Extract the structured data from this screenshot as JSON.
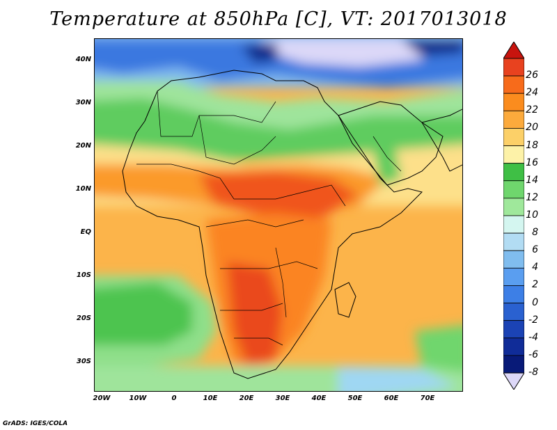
{
  "title": "Temperature at 850hPa [C], VT: 2017013018",
  "credit": "GrADS: IGES/COLA",
  "lat_labels": [
    "40N",
    "30N",
    "20N",
    "10N",
    "EQ",
    "10S",
    "20S",
    "30S"
  ],
  "lon_labels": [
    "20W",
    "10W",
    "0",
    "10E",
    "20E",
    "30E",
    "40E",
    "50E",
    "60E",
    "70E"
  ],
  "colorbar": {
    "labels": [
      "26",
      "24",
      "22",
      "20",
      "18",
      "16",
      "14",
      "12",
      "10",
      "8",
      "6",
      "4",
      "2",
      "0",
      "-2",
      "-4",
      "-6",
      "-8"
    ],
    "colors": [
      "#e8421f",
      "#f76b1b",
      "#fb8c1e",
      "#fcaa3c",
      "#fcd068",
      "#fdf2a8",
      "#3fbf45",
      "#6fd66d",
      "#9fe89b",
      "#d4f6f0",
      "#b2dcf3",
      "#80bdef",
      "#5a9ef0",
      "#3d7fe6",
      "#2a61d0",
      "#1b43b5",
      "#102c98",
      "#081a78"
    ],
    "top_triangle_color": "#c8140e",
    "bottom_triangle_color": "#ddd8f8"
  }
}
